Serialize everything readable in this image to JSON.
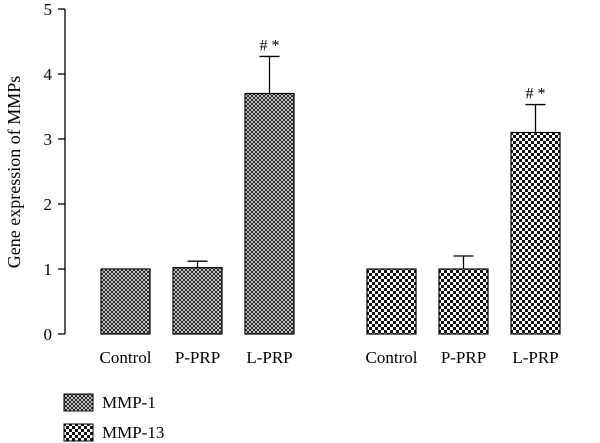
{
  "chart_data": {
    "type": "bar",
    "title": "",
    "xlabel": "",
    "ylabel": "Gene expression of MMPs",
    "ylim": [
      0,
      5
    ],
    "yticks": [
      0,
      1,
      2,
      3,
      4,
      5
    ],
    "grid": false,
    "legend_position": "bottom-left",
    "groups": [
      {
        "series": "MMP-1",
        "pattern": "crosshatch",
        "categories": [
          "Control",
          "P-PRP",
          "L-PRP"
        ],
        "values": [
          1.0,
          1.02,
          3.7
        ],
        "errors": [
          0.0,
          0.1,
          0.57
        ],
        "annotations": [
          "",
          "",
          "# *"
        ]
      },
      {
        "series": "MMP-13",
        "pattern": "checkerboard",
        "categories": [
          "Control",
          "P-PRP",
          "L-PRP"
        ],
        "values": [
          1.0,
          1.0,
          3.1
        ],
        "errors": [
          0.0,
          0.2,
          0.43
        ],
        "annotations": [
          "",
          "",
          "# *"
        ]
      }
    ],
    "legend": [
      {
        "label": "MMP-1",
        "pattern": "crosshatch"
      },
      {
        "label": "MMP-13",
        "pattern": "checkerboard"
      }
    ]
  }
}
